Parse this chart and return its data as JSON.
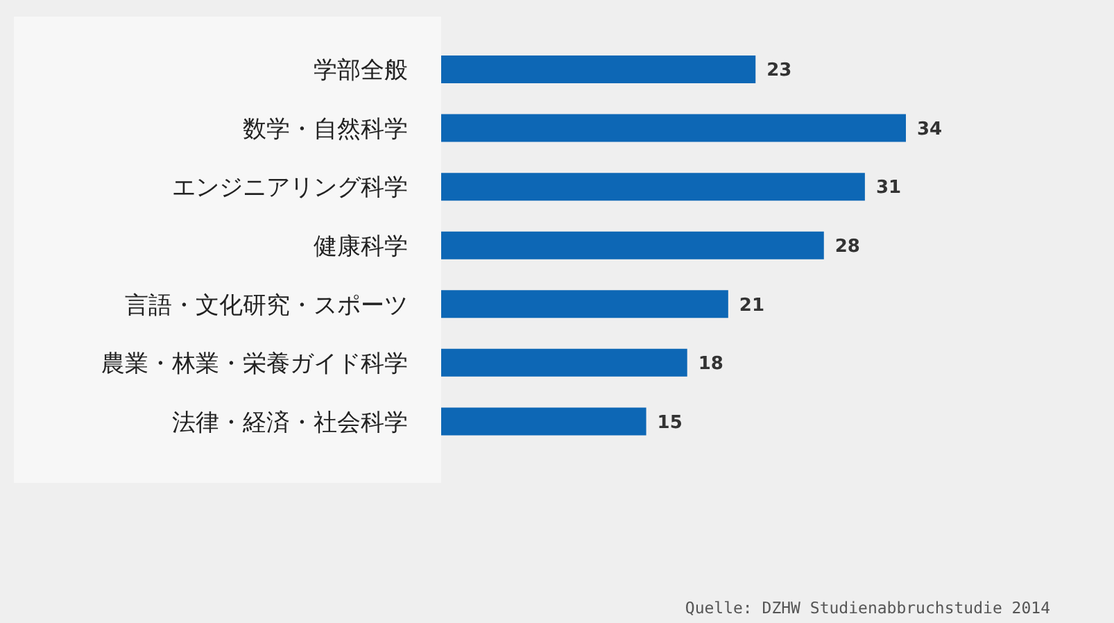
{
  "chart_data": {
    "type": "bar",
    "orientation": "horizontal",
    "categories": [
      "学部全般",
      "数学・自然科学",
      "エンジニアリング科学",
      "健康科学",
      "言語・文化研究・スポーツ",
      "農業・林業・栄養ガイド科学",
      "法律・経済・社会科学"
    ],
    "values": [
      23,
      34,
      31,
      28,
      21,
      18,
      15
    ],
    "color": "#0d67b5",
    "data_labels": true,
    "annotations": [
      "Quelle: DZHW Studienabbruchstudie 2014"
    ]
  }
}
